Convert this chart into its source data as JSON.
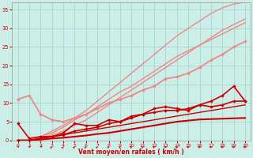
{
  "background_color": "#cceee8",
  "grid_color": "#aad4ce",
  "xlabel": "Vent moyen/en rafales ( km/h )",
  "xlabel_color": "#cc0000",
  "tick_color": "#cc0000",
  "x_values": [
    0,
    1,
    2,
    3,
    4,
    5,
    6,
    7,
    8,
    9,
    10,
    11,
    12,
    13,
    14,
    15,
    16,
    17,
    18,
    19,
    20
  ],
  "ylim": [
    0,
    37
  ],
  "xlim": [
    -0.5,
    20.5
  ],
  "yticks": [
    0,
    5,
    10,
    15,
    20,
    25,
    30,
    35
  ],
  "lines": [
    {
      "y": [
        4.5,
        0.5,
        1.0,
        1.0,
        2.0,
        4.5,
        4.0,
        4.0,
        5.5,
        5.0,
        6.5,
        7.0,
        7.5,
        8.0,
        8.0,
        8.5,
        9.5,
        9.0,
        9.5,
        10.5,
        10.5
      ],
      "color": "#cc0000",
      "linewidth": 1.2,
      "marker": "D",
      "markersize": 2.0,
      "zorder": 6,
      "linestyle": "-"
    },
    {
      "y": [
        0,
        0,
        0.5,
        1.0,
        1.5,
        2.0,
        2.5,
        3.0,
        3.5,
        4.0,
        4.5,
        5.0,
        5.5,
        6.0,
        6.5,
        7.0,
        7.5,
        8.0,
        8.5,
        9.0,
        9.5
      ],
      "color": "#cc0000",
      "linewidth": 1.0,
      "marker": null,
      "markersize": 0,
      "zorder": 5,
      "linestyle": "-"
    },
    {
      "y": [
        0,
        0,
        0.5,
        1.0,
        1.5,
        2.5,
        3.0,
        3.5,
        4.5,
        5.0,
        6.0,
        7.0,
        8.5,
        9.0,
        8.5,
        8.0,
        9.5,
        10.5,
        12.0,
        14.5,
        10.5
      ],
      "color": "#cc0000",
      "linewidth": 1.2,
      "marker": "D",
      "markersize": 2.0,
      "zorder": 6,
      "linestyle": "-"
    },
    {
      "y": [
        0,
        0,
        0.2,
        0.5,
        0.7,
        1.0,
        1.3,
        1.7,
        2.0,
        2.5,
        3.0,
        3.5,
        4.0,
        4.5,
        5.0,
        5.3,
        5.6,
        5.7,
        5.8,
        5.9,
        6.0
      ],
      "color": "#cc0000",
      "linewidth": 1.5,
      "marker": null,
      "markersize": 0,
      "zorder": 4,
      "linestyle": "-"
    },
    {
      "y": [
        11.0,
        12.0,
        7.0,
        5.5,
        5.0,
        6.0,
        7.0,
        8.5,
        10.0,
        11.0,
        12.0,
        13.5,
        14.5,
        16.5,
        17.0,
        18.0,
        19.5,
        21.5,
        23.0,
        25.0,
        26.5
      ],
      "color": "#ee8888",
      "linewidth": 1.3,
      "marker": "D",
      "markersize": 2.0,
      "zorder": 3,
      "linestyle": "-"
    },
    {
      "y": [
        0,
        0,
        1.0,
        2.0,
        3.5,
        5.5,
        7.0,
        9.0,
        11.0,
        13.0,
        14.5,
        16.5,
        18.5,
        20.5,
        22.5,
        24.0,
        25.5,
        27.0,
        28.5,
        30.0,
        31.5
      ],
      "color": "#ee8888",
      "linewidth": 1.0,
      "marker": null,
      "markersize": 0,
      "zorder": 3,
      "linestyle": "-"
    },
    {
      "y": [
        0,
        0,
        1.0,
        2.5,
        4.0,
        6.0,
        8.0,
        10.5,
        13.0,
        15.5,
        18.0,
        20.5,
        23.0,
        25.5,
        28.0,
        30.0,
        32.0,
        34.0,
        35.5,
        36.5,
        37.0
      ],
      "color": "#ee8888",
      "linewidth": 1.0,
      "marker": null,
      "markersize": 0,
      "zorder": 3,
      "linestyle": "-"
    },
    {
      "y": [
        0,
        0,
        0.5,
        1.5,
        2.5,
        4.0,
        5.5,
        7.5,
        9.5,
        11.5,
        13.5,
        15.5,
        17.5,
        19.5,
        21.5,
        23.5,
        25.5,
        27.5,
        29.5,
        31.0,
        32.5
      ],
      "color": "#ee8888",
      "linewidth": 1.0,
      "marker": null,
      "markersize": 0,
      "zorder": 2,
      "linestyle": "-"
    }
  ],
  "arrow_angles": [
    10,
    10,
    20,
    28,
    33,
    33,
    38,
    38,
    40,
    43,
    45,
    48,
    52,
    55,
    57,
    58,
    60,
    62,
    63,
    64,
    65
  ]
}
